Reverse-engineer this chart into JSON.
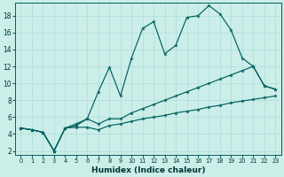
{
  "xlabel": "Humidex (Indice chaleur)",
  "bg_color": "#cceee8",
  "line_color": "#006060",
  "grid_color": "#aadddd",
  "xlim": [
    -0.5,
    23.5
  ],
  "ylim": [
    1.5,
    19.5
  ],
  "xticks": [
    0,
    1,
    2,
    3,
    4,
    5,
    6,
    7,
    8,
    9,
    10,
    11,
    12,
    13,
    14,
    15,
    16,
    17,
    18,
    19,
    20,
    21,
    22,
    23
  ],
  "yticks": [
    2,
    4,
    6,
    8,
    10,
    12,
    14,
    16,
    18
  ],
  "line1_y": [
    4.7,
    4.5,
    4.2,
    2.0,
    4.7,
    5.0,
    5.8,
    9.0,
    11.9,
    8.5,
    13.0,
    16.5,
    17.3,
    13.5,
    14.5,
    17.8,
    18.0,
    19.2,
    18.2,
    16.3,
    13.0,
    12.0,
    9.7,
    9.3
  ],
  "line2_y": [
    4.7,
    4.5,
    4.2,
    2.0,
    4.7,
    5.2,
    5.8,
    5.2,
    5.8,
    5.8,
    6.5,
    7.0,
    7.5,
    8.0,
    8.5,
    9.0,
    9.5,
    10.0,
    10.5,
    11.0,
    11.5,
    12.0,
    9.7,
    9.3
  ],
  "line3_y": [
    4.7,
    4.5,
    4.2,
    2.0,
    4.7,
    4.8,
    4.8,
    4.5,
    5.0,
    5.2,
    5.5,
    5.8,
    6.0,
    6.2,
    6.5,
    6.7,
    6.9,
    7.2,
    7.4,
    7.7,
    7.9,
    8.1,
    8.3,
    8.5
  ]
}
